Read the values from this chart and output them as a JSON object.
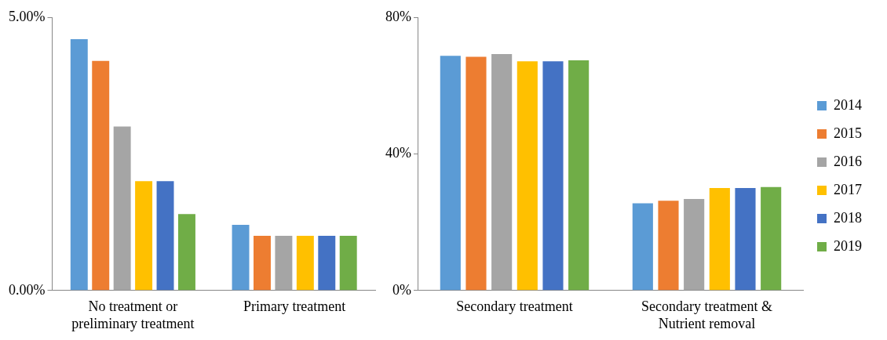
{
  "chart_data": [
    {
      "type": "bar",
      "categories": [
        "No treatment or preliminary treatment",
        "Primary treatment"
      ],
      "ylim": [
        0,
        5
      ],
      "yticks": [
        {
          "value": 0,
          "label": "0.00%"
        },
        {
          "value": 5,
          "label": "5.00%"
        }
      ],
      "grid": false,
      "legend": false,
      "series": [
        {
          "color": "#5b9bd5",
          "values": [
            4.6,
            1.2
          ]
        },
        {
          "color": "#ed7d31",
          "values": [
            4.2,
            1.0
          ]
        },
        {
          "color": "#a5a5a5",
          "values": [
            3.0,
            1.0
          ]
        },
        {
          "color": "#ffc000",
          "values": [
            2.0,
            1.0
          ]
        },
        {
          "color": "#4472c4",
          "values": [
            2.0,
            1.0
          ]
        },
        {
          "color": "#70ad47",
          "values": [
            1.4,
            1.0
          ]
        }
      ]
    },
    {
      "type": "bar",
      "categories": [
        "Secondary treatment",
        "Secondary treatment & Nutrient removal"
      ],
      "ylim": [
        0,
        80
      ],
      "yticks": [
        {
          "value": 0,
          "label": "0%"
        },
        {
          "value": 40,
          "label": "40%"
        },
        {
          "value": 80,
          "label": "80%"
        }
      ],
      "grid": false,
      "legend": "right",
      "series": [
        {
          "name": "2014",
          "color": "#5b9bd5",
          "values": [
            68.7,
            25.5
          ]
        },
        {
          "name": "2015",
          "color": "#ed7d31",
          "values": [
            68.4,
            26.3
          ]
        },
        {
          "name": "2016",
          "color": "#a5a5a5",
          "values": [
            69.2,
            26.8
          ]
        },
        {
          "name": "2017",
          "color": "#ffc000",
          "values": [
            67.1,
            30.0
          ]
        },
        {
          "name": "2018",
          "color": "#4472c4",
          "values": [
            67.1,
            30.0
          ]
        },
        {
          "name": "2019",
          "color": "#70ad47",
          "values": [
            67.4,
            30.3
          ]
        }
      ]
    }
  ]
}
